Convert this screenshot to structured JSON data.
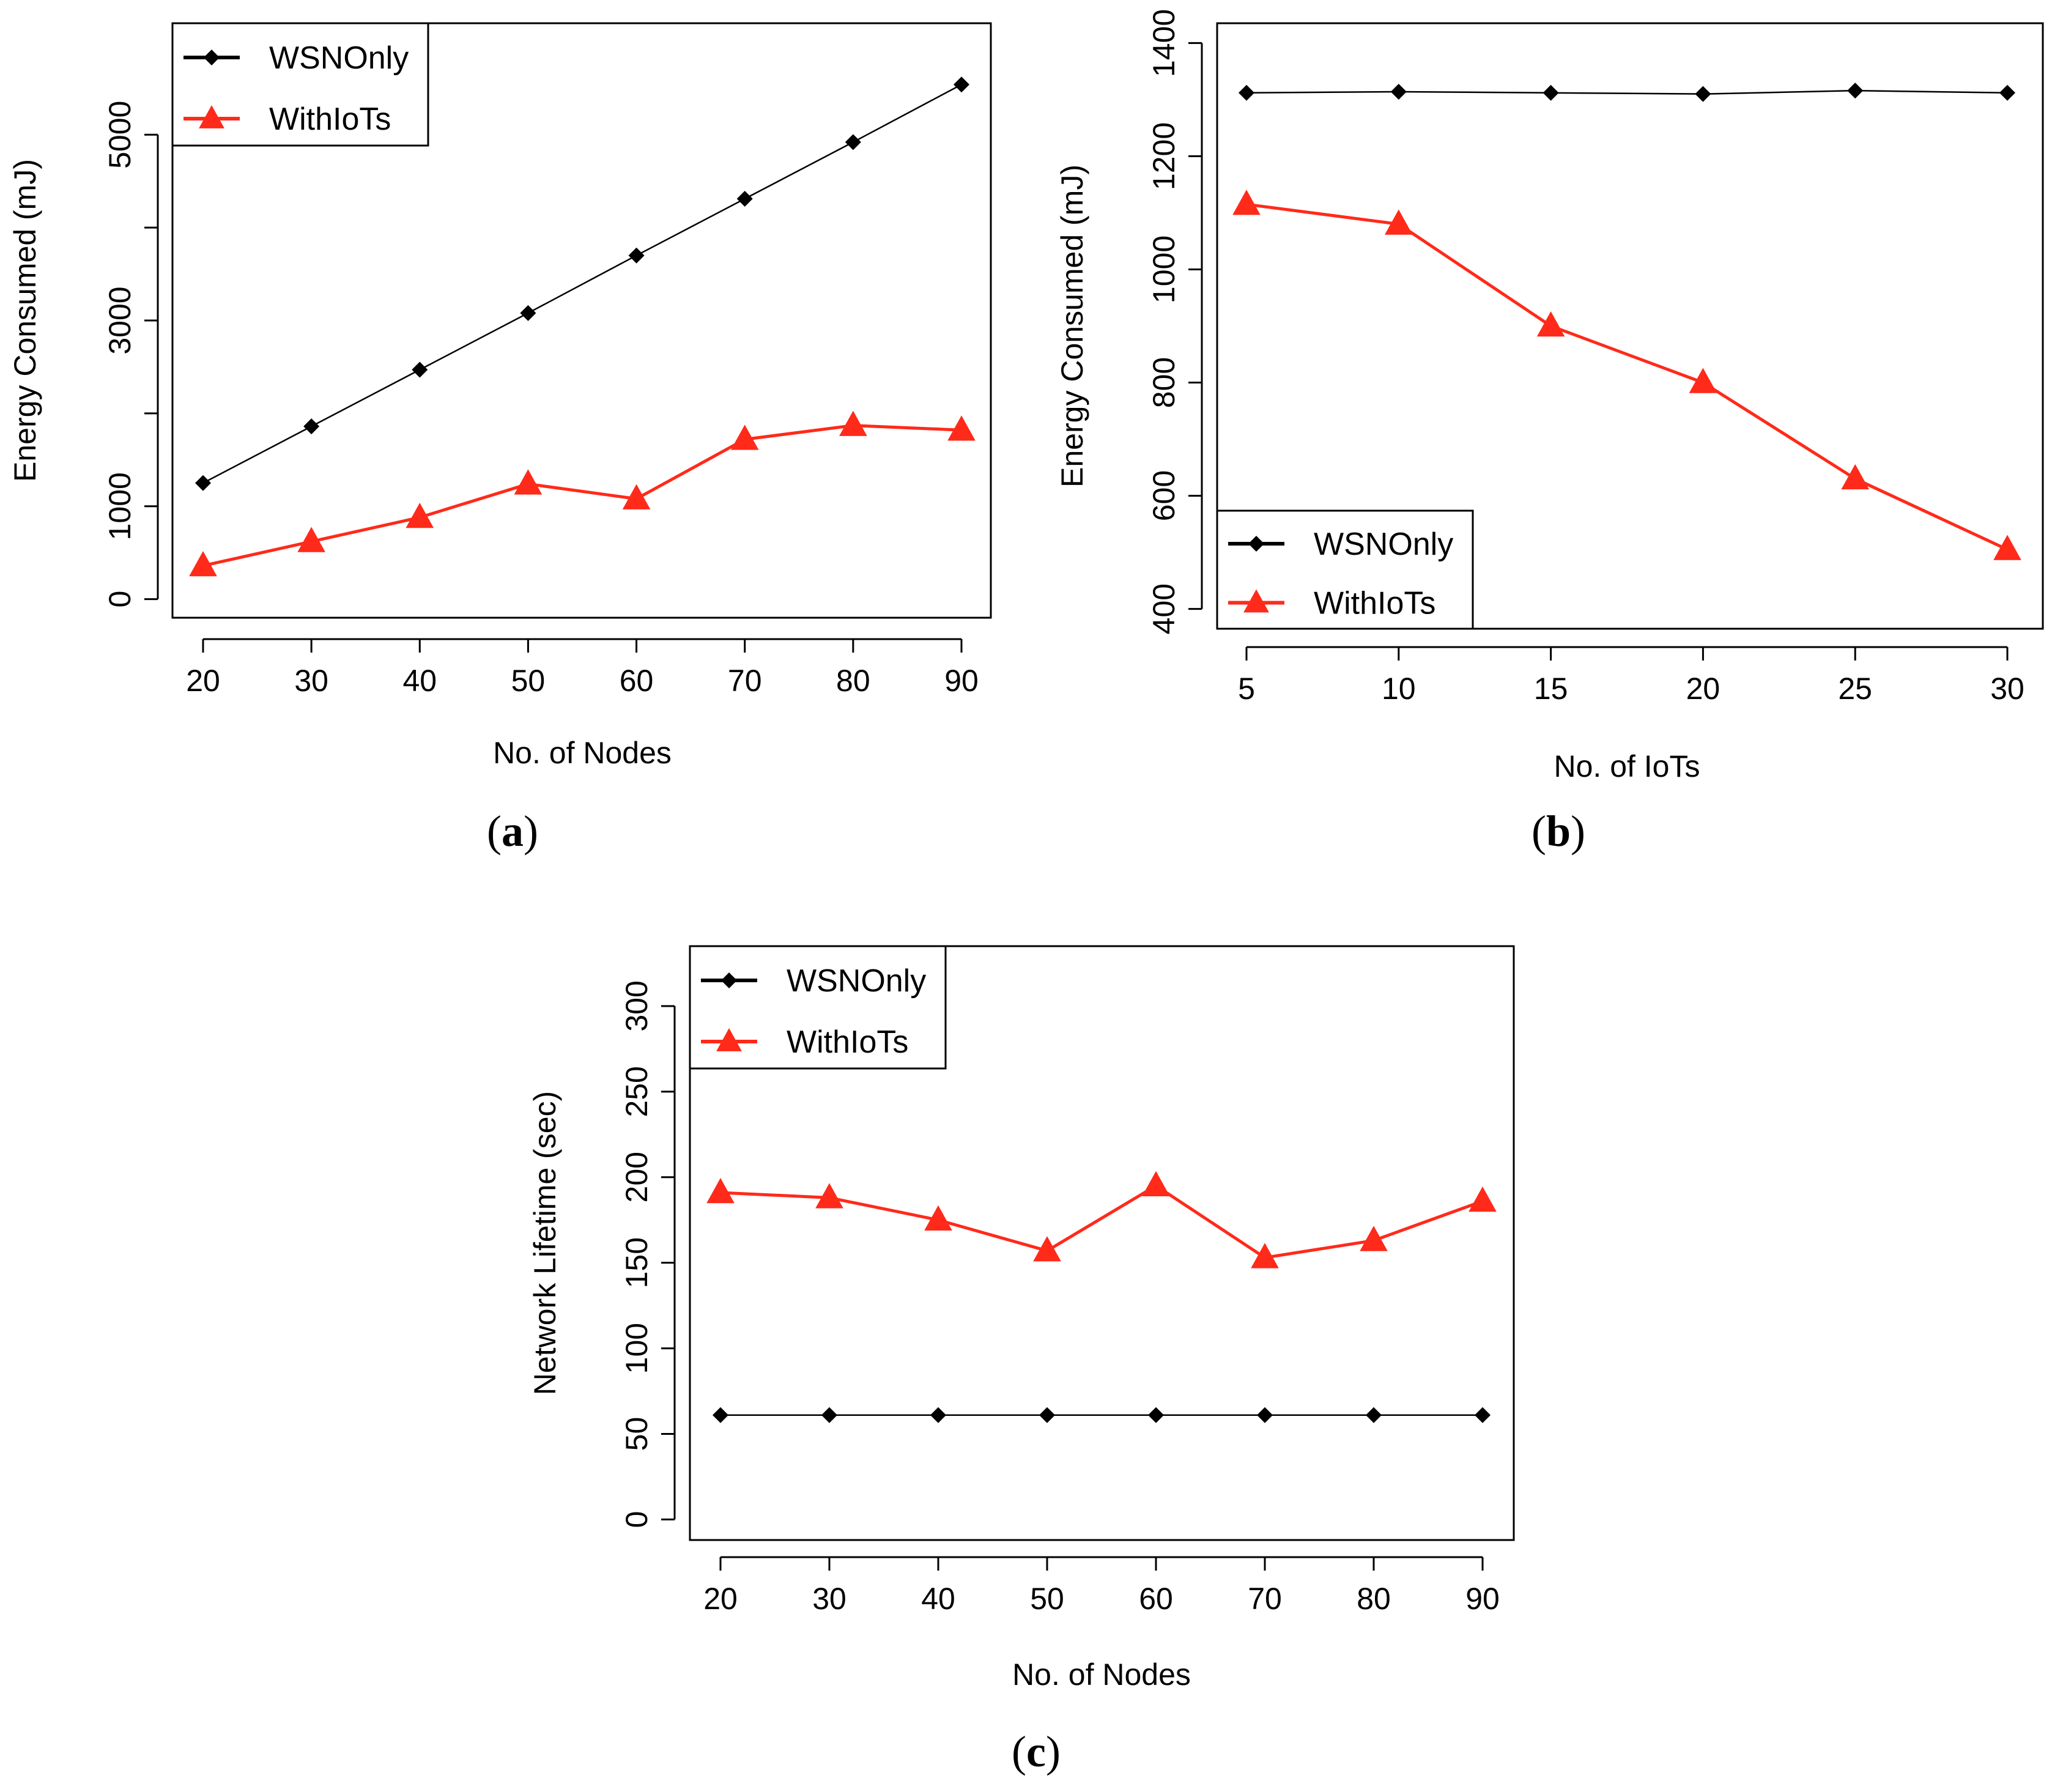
{
  "colors": {
    "series_black": "#000000",
    "series_red": "#ff2a1a",
    "axis": "#000000",
    "background": "#ffffff"
  },
  "chart_data": [
    {
      "type": "line",
      "caption_letter": "a",
      "caption": "(a)",
      "xlabel": "No. of Nodes",
      "ylabel": "Energy Consumed (mJ)",
      "x": [
        20,
        30,
        40,
        50,
        60,
        70,
        80,
        90
      ],
      "x_tick_labels": [
        "20",
        "30",
        "40",
        "50",
        "60",
        "70",
        "80",
        "90"
      ],
      "y_ticks": [
        0,
        1000,
        3000,
        5000
      ],
      "y_minor_ticks": [
        2000,
        4000
      ],
      "ylim": [
        -200,
        6200
      ],
      "legend": {
        "position": "top-left"
      },
      "series": [
        {
          "name": "WSNOnly",
          "marker": "diamond",
          "color": "#000000",
          "values": [
            1250,
            1860,
            2470,
            3080,
            3700,
            4310,
            4920,
            5540
          ]
        },
        {
          "name": "WithIoTs",
          "marker": "triangle",
          "color": "#ff2a1a",
          "values": [
            360,
            620,
            880,
            1240,
            1080,
            1720,
            1870,
            1820
          ]
        }
      ]
    },
    {
      "type": "line",
      "caption_letter": "b",
      "caption": "(b)",
      "xlabel": "No. of IoTs",
      "ylabel": "Energy Consumed (mJ)",
      "x": [
        5,
        10,
        15,
        20,
        25,
        30
      ],
      "x_tick_labels": [
        "5",
        "10",
        "15",
        "20",
        "25",
        "30"
      ],
      "y_ticks": [
        400,
        600,
        800,
        1000,
        1200,
        1400
      ],
      "y_minor_ticks": [],
      "ylim": [
        365,
        1435
      ],
      "legend": {
        "position": "bottom-left"
      },
      "series": [
        {
          "name": "WSNOnly",
          "marker": "diamond",
          "color": "#000000",
          "values": [
            1312,
            1314,
            1312,
            1310,
            1316,
            1312
          ]
        },
        {
          "name": "WithIoTs",
          "marker": "triangle",
          "color": "#ff2a1a",
          "values": [
            1115,
            1080,
            900,
            800,
            630,
            505
          ]
        }
      ]
    },
    {
      "type": "line",
      "caption_letter": "c",
      "caption": "(c)",
      "xlabel": "No. of Nodes",
      "ylabel": "Network Lifetime (sec)",
      "x": [
        20,
        30,
        40,
        50,
        60,
        70,
        80,
        90
      ],
      "x_tick_labels": [
        "20",
        "30",
        "40",
        "50",
        "60",
        "70",
        "80",
        "90"
      ],
      "y_ticks": [
        0,
        50,
        100,
        150,
        200,
        250,
        300
      ],
      "y_minor_ticks": [],
      "ylim": [
        -12,
        335
      ],
      "legend": {
        "position": "top-left"
      },
      "series": [
        {
          "name": "WSNOnly",
          "marker": "diamond",
          "color": "#000000",
          "values": [
            61,
            61,
            61,
            61,
            61,
            61,
            61,
            61
          ]
        },
        {
          "name": "WithIoTs",
          "marker": "triangle",
          "color": "#ff2a1a",
          "values": [
            191,
            188,
            175,
            157,
            195,
            153,
            163,
            186
          ]
        }
      ]
    }
  ]
}
